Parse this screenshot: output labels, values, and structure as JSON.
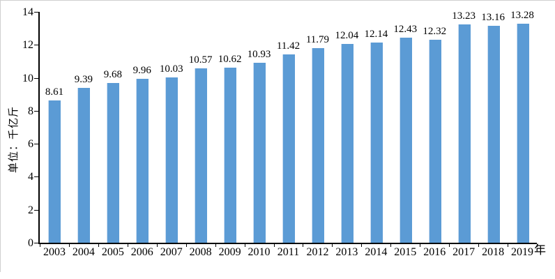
{
  "chart_data": {
    "type": "bar",
    "categories": [
      "2003",
      "2004",
      "2005",
      "2006",
      "2007",
      "2008",
      "2009",
      "2010",
      "2011",
      "2012",
      "2013",
      "2014",
      "2015",
      "2016",
      "2017",
      "2018",
      "2019"
    ],
    "values": [
      8.61,
      9.39,
      9.68,
      9.96,
      10.03,
      10.57,
      10.62,
      10.93,
      11.42,
      11.79,
      12.04,
      12.14,
      12.43,
      12.32,
      13.23,
      13.16,
      13.28
    ],
    "data_labels": [
      "8.61",
      "9.39",
      "9.68",
      "9.96",
      "10.03",
      "10.57",
      "10.62",
      "10.93",
      "11.42",
      "11.79",
      "12.04",
      "12.14",
      "12.43",
      "12.32",
      "13.23",
      "13.16",
      "13.28"
    ],
    "ylabel": "单位：千亿斤",
    "xlabel": "年",
    "ylim": [
      0,
      14
    ],
    "yticks": [
      0,
      2,
      4,
      6,
      8,
      10,
      12,
      14
    ],
    "grid": false,
    "legend": "none",
    "colors": {
      "bar_fill": "#5B9BD5",
      "bar_edge_highlight": "#c9dcf1",
      "axis": "#000000",
      "text": "#000000",
      "page_border": "#cfcfcf"
    }
  }
}
